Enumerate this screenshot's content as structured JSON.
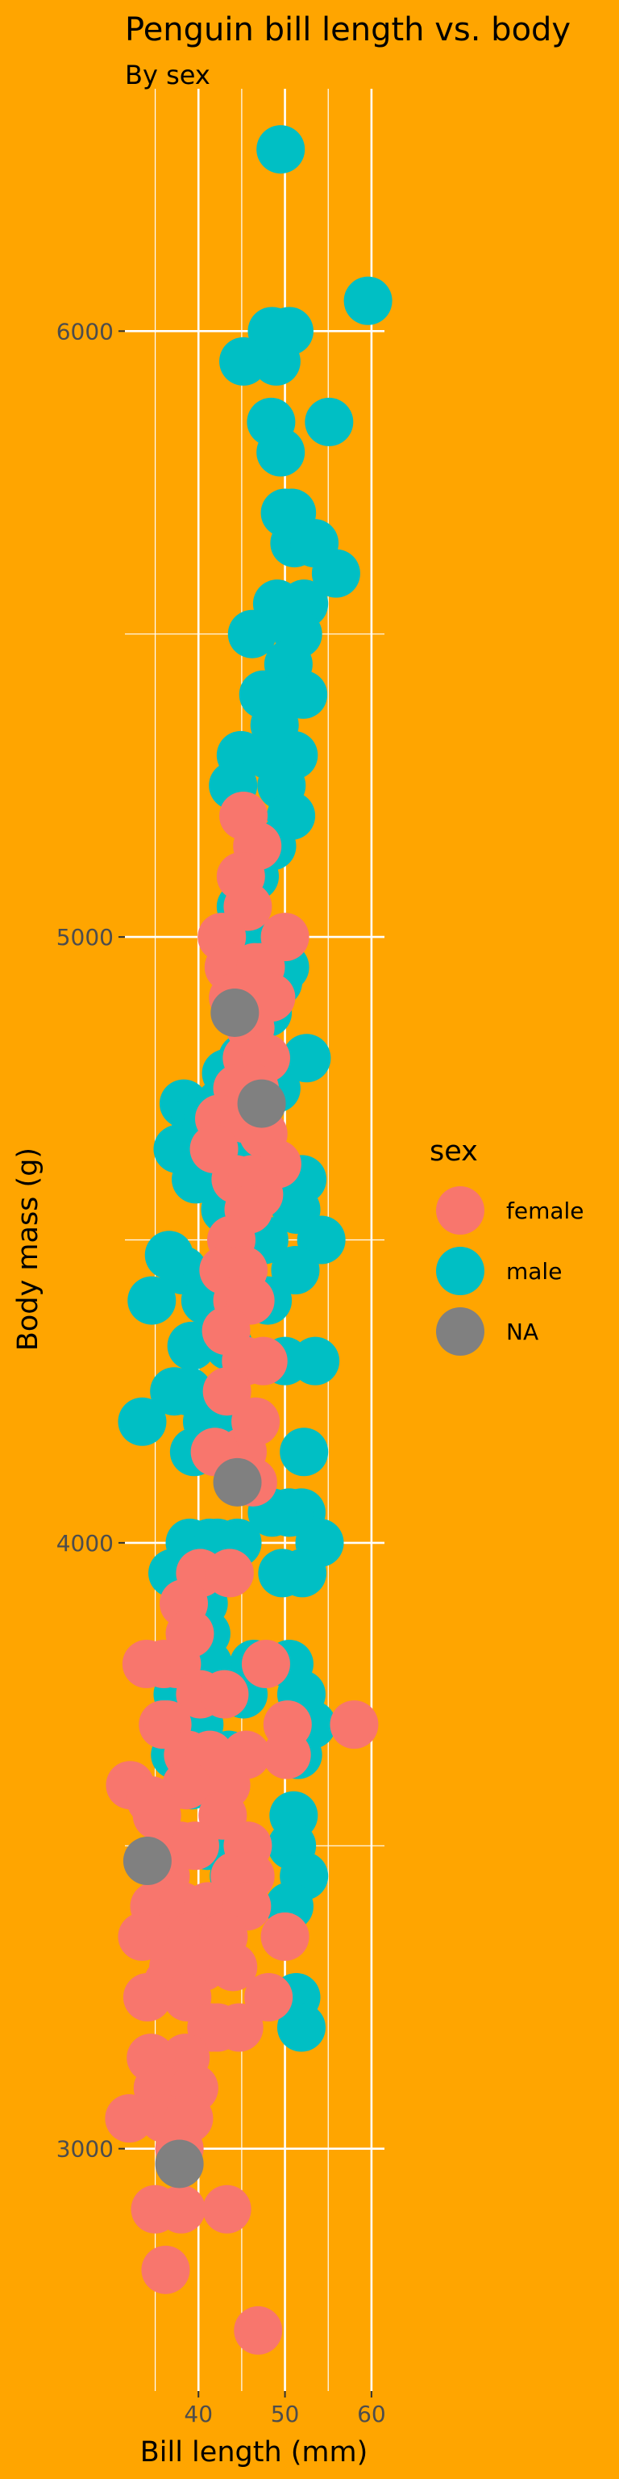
{
  "chart_data": {
    "type": "scatter",
    "title": "Penguin bill length vs. body",
    "subtitle": "By sex",
    "xlabel": "Bill length (mm)",
    "ylabel": "Body mass (g)",
    "xlim": [
      31.5,
      61.5
    ],
    "ylim": [
      2600,
      6400
    ],
    "x_ticks": [
      40,
      50,
      60
    ],
    "x_tick_labels": [
      "40",
      "50",
      "60"
    ],
    "y_ticks": [
      3000,
      4000,
      5000,
      6000
    ],
    "y_tick_labels": [
      "3000",
      "4000",
      "5000",
      "6000"
    ],
    "grid": true,
    "background": "#FFA500",
    "legend": {
      "title": "sex",
      "position": "right",
      "entries": [
        {
          "label": "female",
          "color": "#F8766D"
        },
        {
          "label": "male",
          "color": "#00BFC4"
        },
        {
          "label": "NA",
          "color": "#808080"
        }
      ]
    },
    "series": [
      {
        "name": "male",
        "color": "#00BFC4",
        "points": [
          [
            49.5,
            6300
          ],
          [
            59.6,
            6050
          ],
          [
            50.5,
            6000
          ],
          [
            48.5,
            6000
          ],
          [
            49.0,
            5950
          ],
          [
            45.2,
            5950
          ],
          [
            48.4,
            5850
          ],
          [
            55.1,
            5850
          ],
          [
            49.5,
            5800
          ],
          [
            50.0,
            5700
          ],
          [
            51.1,
            5650
          ],
          [
            50.8,
            5700
          ],
          [
            53.4,
            5650
          ],
          [
            55.9,
            5600
          ],
          [
            49.1,
            5550
          ],
          [
            52.2,
            5550
          ],
          [
            51.5,
            5500
          ],
          [
            46.2,
            5500
          ],
          [
            50.4,
            5450
          ],
          [
            52.1,
            5400
          ],
          [
            47.5,
            5400
          ],
          [
            48.8,
            5350
          ],
          [
            44.9,
            5300
          ],
          [
            51.0,
            5300
          ],
          [
            48.1,
            5300
          ],
          [
            49.6,
            5250
          ],
          [
            44.0,
            5250
          ],
          [
            50.7,
            5200
          ],
          [
            47.3,
            5150
          ],
          [
            48.5,
            5150
          ],
          [
            46.5,
            5100
          ],
          [
            44.9,
            5050
          ],
          [
            46.1,
            5000
          ],
          [
            45.5,
            5000
          ],
          [
            49.2,
            4925
          ],
          [
            50.0,
            4950
          ],
          [
            48.0,
            4875
          ],
          [
            45.1,
            4800
          ],
          [
            52.5,
            4800
          ],
          [
            43.2,
            4775
          ],
          [
            49.0,
            4750
          ],
          [
            38.3,
            4725
          ],
          [
            39.6,
            4700
          ],
          [
            41.1,
            4700
          ],
          [
            42.5,
            4725
          ],
          [
            37.6,
            4650
          ],
          [
            46.8,
            4650
          ],
          [
            40.9,
            4650
          ],
          [
            39.7,
            4600
          ],
          [
            52.0,
            4600
          ],
          [
            51.3,
            4550
          ],
          [
            43.1,
            4550
          ],
          [
            47.6,
            4500
          ],
          [
            54.2,
            4500
          ],
          [
            38.2,
            4450
          ],
          [
            36.6,
            4475
          ],
          [
            51.2,
            4450
          ],
          [
            48.0,
            4400
          ],
          [
            34.6,
            4400
          ],
          [
            40.8,
            4400
          ],
          [
            39.2,
            4325
          ],
          [
            43.5,
            4325
          ],
          [
            50.0,
            4300
          ],
          [
            53.5,
            4300
          ],
          [
            38.8,
            4250
          ],
          [
            37.2,
            4250
          ],
          [
            41.0,
            4200
          ],
          [
            44.1,
            4200
          ],
          [
            33.5,
            4200
          ],
          [
            52.2,
            4150
          ],
          [
            39.5,
            4150
          ],
          [
            42.3,
            4150
          ],
          [
            51.9,
            4050
          ],
          [
            50.5,
            4050
          ],
          [
            48.5,
            4050
          ],
          [
            41.3,
            4000
          ],
          [
            39.0,
            4000
          ],
          [
            54.0,
            4000
          ],
          [
            44.5,
            4000
          ],
          [
            42.2,
            4000
          ],
          [
            52.0,
            3950
          ],
          [
            49.7,
            3950
          ],
          [
            37.0,
            3950
          ],
          [
            38.5,
            3900
          ],
          [
            40.6,
            3900
          ],
          [
            46.4,
            3800
          ],
          [
            40.9,
            3850
          ],
          [
            50.5,
            3800
          ],
          [
            51.9,
            3750
          ],
          [
            41.1,
            3800
          ],
          [
            45.2,
            3750
          ],
          [
            37.6,
            3750
          ],
          [
            53.1,
            3700
          ],
          [
            38.6,
            3700
          ],
          [
            40.1,
            3700
          ],
          [
            51.5,
            3650
          ],
          [
            43.5,
            3650
          ],
          [
            37.3,
            3650
          ],
          [
            39.2,
            3600
          ],
          [
            51.0,
            3550
          ],
          [
            50.8,
            3500
          ],
          [
            41.1,
            3500
          ],
          [
            44.1,
            3450
          ],
          [
            52.2,
            3450
          ],
          [
            42.0,
            3400
          ],
          [
            50.5,
            3400
          ],
          [
            40.5,
            3325
          ],
          [
            51.3,
            3250
          ],
          [
            51.9,
            3200
          ]
        ]
      },
      {
        "name": "female",
        "color": "#F8766D",
        "points": [
          [
            45.2,
            5200
          ],
          [
            46.8,
            5150
          ],
          [
            44.9,
            5100
          ],
          [
            45.7,
            5050
          ],
          [
            42.7,
            5000
          ],
          [
            50.0,
            5000
          ],
          [
            46.5,
            4950
          ],
          [
            43.5,
            4950
          ],
          [
            47.2,
            4950
          ],
          [
            48.4,
            4900
          ],
          [
            44.0,
            4900
          ],
          [
            46.0,
            4850
          ],
          [
            45.6,
            4800
          ],
          [
            47.8,
            4800
          ],
          [
            44.5,
            4750
          ],
          [
            46.5,
            4750
          ],
          [
            42.4,
            4700
          ],
          [
            45.3,
            4700
          ],
          [
            47.5,
            4675
          ],
          [
            41.8,
            4650
          ],
          [
            49.1,
            4625
          ],
          [
            44.3,
            4600
          ],
          [
            46.2,
            4600
          ],
          [
            47.0,
            4575
          ],
          [
            45.8,
            4550
          ],
          [
            43.8,
            4500
          ],
          [
            42.9,
            4450
          ],
          [
            45.2,
            4450
          ],
          [
            44.5,
            4400
          ],
          [
            46.0,
            4400
          ],
          [
            43.2,
            4350
          ],
          [
            47.5,
            4300
          ],
          [
            45.5,
            4300
          ],
          [
            43.3,
            4250
          ],
          [
            46.6,
            4200
          ],
          [
            45.1,
            4150
          ],
          [
            41.9,
            4150
          ],
          [
            46.3,
            4100
          ],
          [
            40.2,
            3950
          ],
          [
            43.6,
            3950
          ],
          [
            38.3,
            3900
          ],
          [
            39.0,
            3850
          ],
          [
            36.0,
            3800
          ],
          [
            37.5,
            3800
          ],
          [
            47.8,
            3800
          ],
          [
            40.2,
            3750
          ],
          [
            43.0,
            3750
          ],
          [
            34.0,
            3800
          ],
          [
            35.9,
            3700
          ],
          [
            36.4,
            3700
          ],
          [
            50.3,
            3700
          ],
          [
            58.0,
            3700
          ],
          [
            38.8,
            3650
          ],
          [
            41.3,
            3650
          ],
          [
            45.5,
            3650
          ],
          [
            50.2,
            3650
          ],
          [
            43.2,
            3600
          ],
          [
            38.6,
            3600
          ],
          [
            32.1,
            3600
          ],
          [
            34.5,
            3575
          ],
          [
            35.2,
            3550
          ],
          [
            42.8,
            3550
          ],
          [
            45.7,
            3500
          ],
          [
            37.9,
            3500
          ],
          [
            39.6,
            3500
          ],
          [
            44.2,
            3450
          ],
          [
            36.2,
            3450
          ],
          [
            46.0,
            3450
          ],
          [
            34.9,
            3400
          ],
          [
            38.1,
            3400
          ],
          [
            41.1,
            3400
          ],
          [
            45.6,
            3400
          ],
          [
            33.5,
            3350
          ],
          [
            36.8,
            3350
          ],
          [
            39.2,
            3350
          ],
          [
            42.9,
            3350
          ],
          [
            50.0,
            3350
          ],
          [
            37.1,
            3300
          ],
          [
            40.5,
            3300
          ],
          [
            44.0,
            3300
          ],
          [
            36.5,
            3275
          ],
          [
            34.1,
            3250
          ],
          [
            38.7,
            3250
          ],
          [
            48.1,
            3250
          ],
          [
            42.2,
            3200
          ],
          [
            41.5,
            3200
          ],
          [
            38.5,
            3150
          ],
          [
            44.7,
            3200
          ],
          [
            34.5,
            3150
          ],
          [
            35.3,
            3100
          ],
          [
            39.5,
            3100
          ],
          [
            36.0,
            3050
          ],
          [
            32.0,
            3050
          ],
          [
            38.9,
            3050
          ],
          [
            37.8,
            3000
          ],
          [
            35.0,
            2900
          ],
          [
            43.3,
            2900
          ],
          [
            38.0,
            2900
          ],
          [
            36.2,
            2800
          ],
          [
            46.9,
            2700
          ]
        ]
      },
      {
        "name": "NA",
        "color": "#808080",
        "points": [
          [
            47.3,
            4725
          ],
          [
            44.2,
            4875
          ],
          [
            44.5,
            4100
          ],
          [
            34.1,
            3475
          ],
          [
            37.8,
            2975
          ]
        ]
      }
    ]
  }
}
